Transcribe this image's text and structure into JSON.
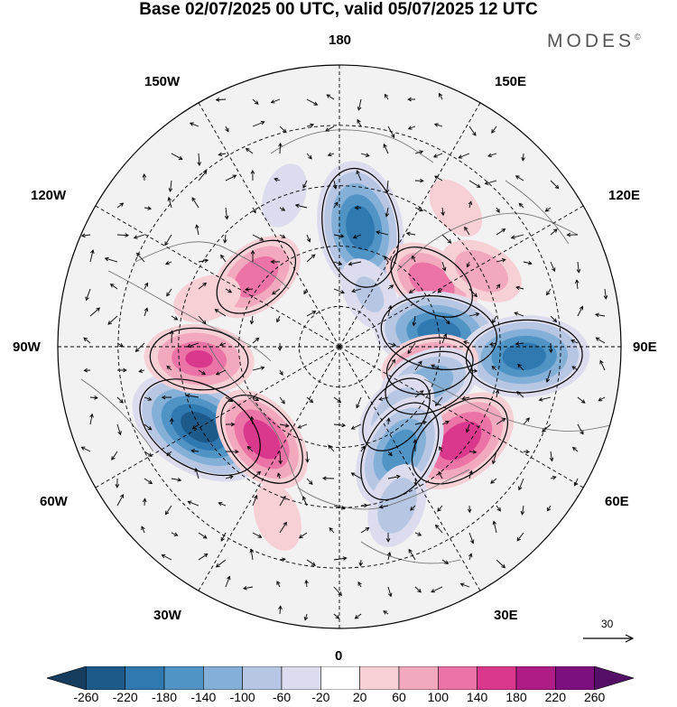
{
  "header": {
    "title": "Base 02/07/2025 00 UTC, valid 05/07/2025 12 UTC",
    "brand": "MODES",
    "brand_mark": "©"
  },
  "map_labels": {
    "top": "180",
    "bottom": "0",
    "left": "90W",
    "right": "90E",
    "lon_150w": "150W",
    "lon_150e": "150E",
    "lon_120w": "120W",
    "lon_120e": "120E",
    "lon_60w": "60W",
    "lon_60e": "60E",
    "lon_30w": "30W",
    "lon_30e": "30E"
  },
  "reference_vector": {
    "label": "30"
  },
  "colorbar": {
    "ticks": [
      "-260",
      "-220",
      "-180",
      "-140",
      "-100",
      "-60",
      "-20",
      "20",
      "60",
      "100",
      "140",
      "180",
      "220",
      "260"
    ],
    "colors": [
      "#173d5e",
      "#1d5a8a",
      "#2f78b0",
      "#5093c5",
      "#84b0d8",
      "#b7c7e3",
      "#dcdcee",
      "#ffffff",
      "#f7d0d6",
      "#f3a9bd",
      "#ec73a5",
      "#d9388c",
      "#ae1c86",
      "#7d0f7f",
      "#531066"
    ]
  },
  "anomalies": [
    {
      "lon": 170,
      "colat": 30,
      "value": -200
    },
    {
      "lon": 125,
      "colat": 28,
      "value": 120
    },
    {
      "lon": 118,
      "colat": 40,
      "value": 80
    },
    {
      "lon": 150,
      "colat": 15,
      "value": -60
    },
    {
      "lon": 98,
      "colat": 25,
      "value": -190
    },
    {
      "lon": 87,
      "colat": 46,
      "value": -190
    },
    {
      "lon": 78,
      "colat": 23,
      "value": 110
    },
    {
      "lon": 68,
      "colat": 24,
      "value": -120
    },
    {
      "lon": 52,
      "colat": 38,
      "value": 170
    },
    {
      "lon": 40,
      "colat": 22,
      "value": -100
    },
    {
      "lon": 30,
      "colat": 30,
      "value": -160
    },
    {
      "lon": 20,
      "colat": 42,
      "value": -80
    },
    {
      "lon": -60,
      "colat": 40,
      "value": -230
    },
    {
      "lon": -85,
      "colat": 35,
      "value": 140
    },
    {
      "lon": -40,
      "colat": 30,
      "value": 150
    },
    {
      "lon": -130,
      "colat": 27,
      "value": 120
    },
    {
      "lon": -110,
      "colat": 35,
      "value": 40
    },
    {
      "lon": -20,
      "colat": 45,
      "value": 40
    },
    {
      "lon": 140,
      "colat": 45,
      "value": 30
    },
    {
      "lon": -160,
      "colat": 40,
      "value": -30
    }
  ]
}
